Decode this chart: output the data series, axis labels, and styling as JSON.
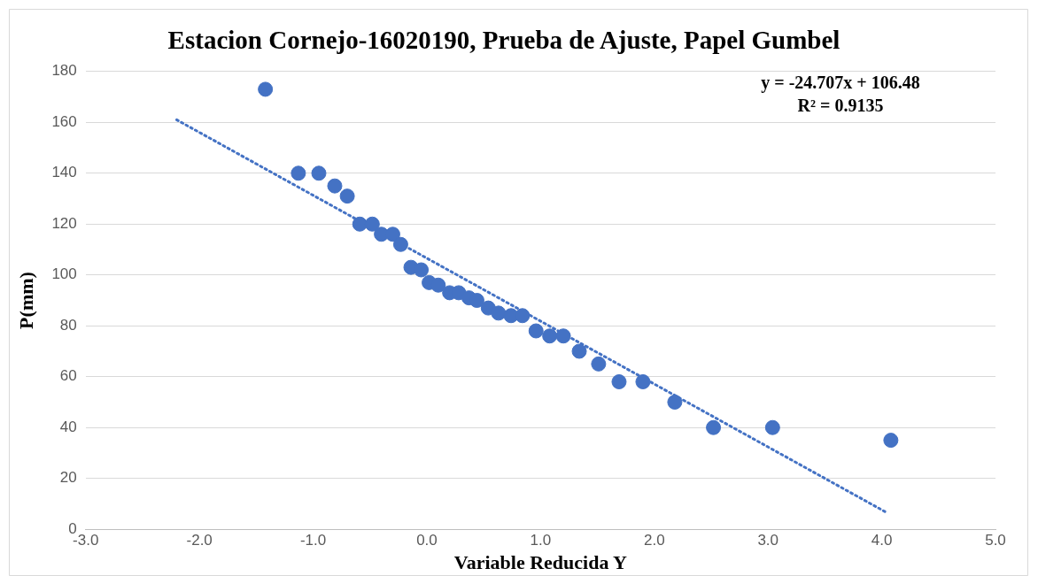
{
  "chart_data": {
    "type": "scatter",
    "title": "Estacion Cornejo-16020190, Prueba de Ajuste, Papel Gumbel",
    "xlabel": "Variable Reducida Y",
    "ylabel": "P(mm)",
    "xlim": [
      -3,
      5
    ],
    "xticks": [
      {
        "value": -3,
        "label": "-3.0"
      },
      {
        "value": -2,
        "label": "-2.0"
      },
      {
        "value": -1,
        "label": "-1.0"
      },
      {
        "value": 0,
        "label": "0.0"
      },
      {
        "value": 1,
        "label": "1.0"
      },
      {
        "value": 2,
        "label": "2.0"
      },
      {
        "value": 3,
        "label": "3.0"
      },
      {
        "value": 4,
        "label": "4.0"
      },
      {
        "value": 5,
        "label": "5.0"
      }
    ],
    "ylim": [
      0,
      180
    ],
    "yticks": [
      0,
      20,
      40,
      60,
      80,
      100,
      120,
      140,
      160,
      180
    ],
    "grid": "y",
    "legend": false,
    "marker": "circle",
    "annotations": [
      "y = -24.707x + 106.48",
      "R² = 0.9135"
    ],
    "series": [
      {
        "color": "#4472c4",
        "x": [
          -1.42,
          -1.13,
          -0.95,
          -0.81,
          -0.7,
          -0.59,
          -0.48,
          -0.4,
          -0.3,
          -0.23,
          -0.14,
          -0.05,
          0.02,
          0.1,
          0.2,
          0.28,
          0.37,
          0.44,
          0.54,
          0.63,
          0.74,
          0.84,
          0.96,
          1.08,
          1.2,
          1.34,
          1.51,
          1.69,
          1.9,
          2.18,
          2.52,
          3.04,
          4.08
        ],
        "values": [
          173,
          140,
          140,
          135,
          131,
          120,
          120,
          116,
          116,
          112,
          103,
          102,
          97,
          96,
          93,
          93,
          91,
          90,
          87,
          85,
          84,
          84,
          78,
          76,
          76,
          70,
          65,
          58,
          58,
          50,
          40,
          40,
          35
        ]
      },
      {
        "type": "line",
        "color": "#4472c4",
        "marker": "none",
        "line_style": "dotted",
        "x": [
          -2.2,
          4.05
        ],
        "values": [
          161,
          6.4
        ]
      }
    ]
  }
}
